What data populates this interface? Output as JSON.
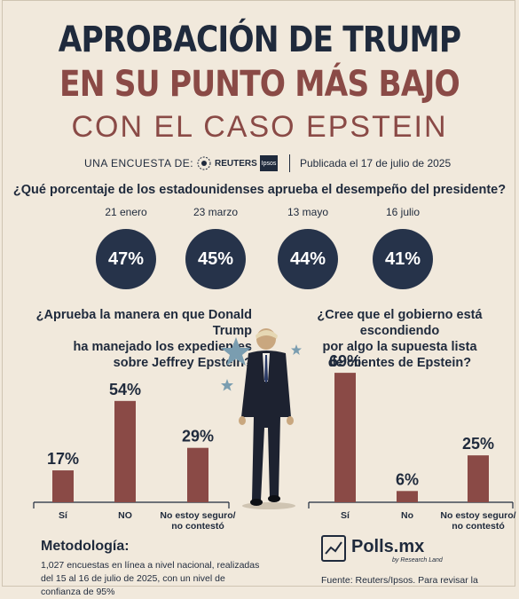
{
  "header": {
    "title_line1": "APROBACIÓN DE TRUMP",
    "title_line2": "EN SU PUNTO MÁS BAJO",
    "title_line3": "CON EL CASO EPSTEIN",
    "byline_label": "UNA ENCUESTA DE:",
    "reuters": "REUTERS",
    "ipsos": "Ipsos",
    "published": "Publicada el 17 de julio de 2025"
  },
  "colors": {
    "navy": "#26334a",
    "bar": "#8a4a46",
    "background": "#f1e9dc",
    "star": "#7a9db0"
  },
  "chart_data": [
    {
      "type": "bubble",
      "question": "¿Qué porcentaje de los estadounidenses aprueba el desempeño del presidente?",
      "categories": [
        "21 enero",
        "23 marzo",
        "13 mayo",
        "16 julio"
      ],
      "values": [
        47,
        45,
        44,
        41
      ],
      "labels": [
        "47%",
        "45%",
        "44%",
        "41%"
      ],
      "unit": "%"
    },
    {
      "type": "bar",
      "question": "¿Aprueba la manera en que Donald Trump\nha manejado los expedientes\nsobre Jeffrey Epstein?",
      "categories": [
        "Sí",
        "NO",
        "No estoy seguro/\nno contestó"
      ],
      "values": [
        17,
        54,
        29
      ],
      "labels": [
        "17%",
        "54%",
        "29%"
      ],
      "unit": "%"
    },
    {
      "type": "bar",
      "question": "¿Cree que el gobierno está escondiendo\npor algo la supuesta lista\nde clientes de Epstein?",
      "categories": [
        "Sí",
        "No",
        "No estoy seguro/\nno contestó"
      ],
      "values": [
        69,
        6,
        25
      ],
      "labels": [
        "69%",
        "6%",
        "25%"
      ],
      "unit": "%"
    }
  ],
  "footer": {
    "method_title": "Metodología:",
    "method_text": "1,027 encuestas en línea a nivel nacional, realizadas del 15 al 16 de julio de 2025, con un nivel de confianza de 95%",
    "brand": "Polls.mx",
    "brand_sub": "by Research Land",
    "source": "Fuente: Reuters/Ipsos. Para revisar la"
  }
}
